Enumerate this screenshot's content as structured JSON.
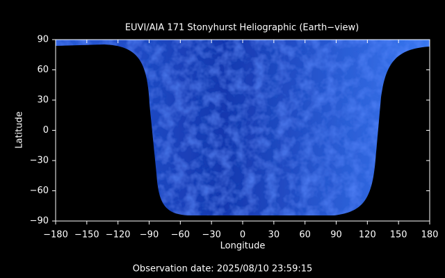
{
  "chart_data": {
    "type": "image",
    "title": "EUVI/AIA 171 Stonyhurst Heliographic (Earth−view)",
    "x_label": "Longitude",
    "y_label": "Latitude",
    "footer": "Observation date: 2025/08/10 23:59:15",
    "xlim": [
      -180,
      180
    ],
    "ylim": [
      -90,
      90
    ],
    "xticks": [
      {
        "value": -180,
        "label": "−180"
      },
      {
        "value": -150,
        "label": "−150"
      },
      {
        "value": -120,
        "label": "−120"
      },
      {
        "value": -90,
        "label": "−90"
      },
      {
        "value": -60,
        "label": "−60"
      },
      {
        "value": -30,
        "label": "−30"
      },
      0,
      30,
      60,
      90,
      120,
      150,
      180
    ],
    "yticks": [
      {
        "value": -90,
        "label": "−90"
      },
      {
        "value": -60,
        "label": "−60"
      },
      {
        "value": -30,
        "label": "−30"
      },
      0,
      30,
      60,
      90
    ]
  }
}
